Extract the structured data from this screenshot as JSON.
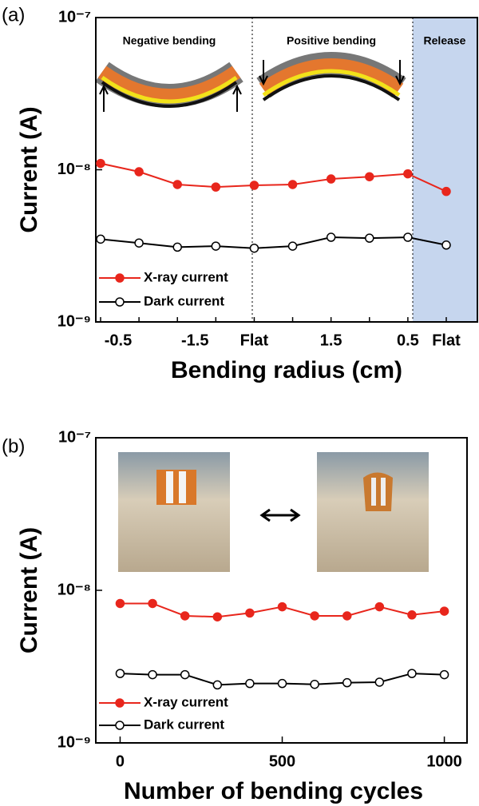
{
  "chart_data": [
    {
      "type": "line",
      "label": "(a)",
      "x_label": "Bending radius (cm)",
      "y_label": "Current (A)",
      "log_y": true,
      "ylim": [
        1e-09,
        1e-07
      ],
      "yticks": [
        {
          "value": 1e-09,
          "label": "10⁻⁹"
        },
        {
          "value": 1e-08,
          "label": "10⁻⁸"
        },
        {
          "value": 1e-07,
          "label": "10⁻⁷"
        }
      ],
      "categories": [
        "-0.5",
        null,
        "-1.5",
        null,
        "Flat",
        null,
        "1.5",
        null,
        "0.5",
        "Flat"
      ],
      "annotations": [
        "Negative bending",
        "Positive bending",
        "Release"
      ],
      "legend": "lower left",
      "series": [
        {
          "name": "X-ray current",
          "color": "#e8261c",
          "marker": "filled",
          "values": [
            1.1e-08,
            9.7e-09,
            8e-09,
            7.7e-09,
            7.9e-09,
            8e-09,
            8.7e-09,
            9e-09,
            9.4e-09,
            7.2e-09
          ]
        },
        {
          "name": "Dark current",
          "color": "#000000",
          "marker": "open",
          "values": [
            3.5e-09,
            3.3e-09,
            3.1e-09,
            3.15e-09,
            3.05e-09,
            3.15e-09,
            3.6e-09,
            3.55e-09,
            3.6e-09,
            3.2e-09
          ]
        }
      ]
    },
    {
      "type": "line",
      "label": "(b)",
      "x_label": "Number of bending cycles",
      "y_label": "Current (A)",
      "log_y": true,
      "ylim": [
        1e-09,
        1e-07
      ],
      "yticks": [
        {
          "value": 1e-09,
          "label": "10⁻⁹"
        },
        {
          "value": 1e-08,
          "label": "10⁻⁸"
        },
        {
          "value": 1e-07,
          "label": "10⁻⁷"
        }
      ],
      "x": [
        0,
        100,
        200,
        300,
        400,
        500,
        600,
        700,
        800,
        900,
        1000
      ],
      "xlim": [
        -75,
        1070
      ],
      "xticks": [
        0,
        500,
        1000
      ],
      "legend": "lower left",
      "series": [
        {
          "name": "X-ray current",
          "color": "#e8261c",
          "marker": "filled",
          "values": [
            8.2e-09,
            8.2e-09,
            6.8e-09,
            6.7e-09,
            7.1e-09,
            7.8e-09,
            6.8e-09,
            6.8e-09,
            7.8e-09,
            6.9e-09,
            7.3e-09
          ]
        },
        {
          "name": "Dark current",
          "color": "#000000",
          "marker": "open",
          "values": [
            2.85e-09,
            2.8e-09,
            2.8e-09,
            2.4e-09,
            2.45e-09,
            2.45e-09,
            2.42e-09,
            2.48e-09,
            2.5e-09,
            2.85e-09,
            2.8e-09
          ]
        }
      ]
    }
  ]
}
